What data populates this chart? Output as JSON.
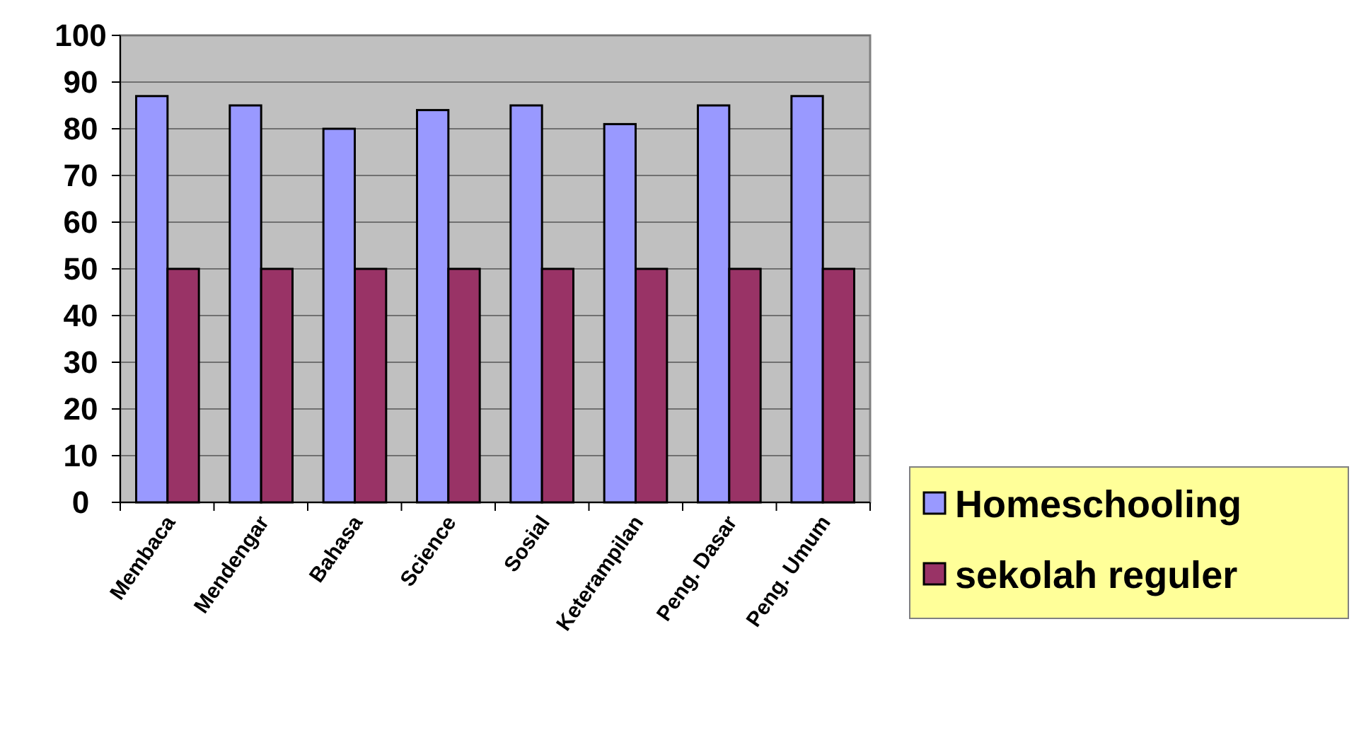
{
  "chart_data": {
    "type": "bar",
    "categories": [
      "Membaca",
      "Mendengar",
      "Bahasa",
      "Science",
      "Sosial",
      "Keterampilan",
      "Peng. Dasar",
      "Peng. Umum"
    ],
    "series": [
      {
        "name": "Homeschooling",
        "color": "#9999ff",
        "values": [
          87,
          85,
          80,
          84,
          85,
          81,
          85,
          87
        ]
      },
      {
        "name": "sekolah reguler",
        "color": "#993366",
        "values": [
          50,
          50,
          50,
          50,
          50,
          50,
          50,
          50
        ]
      }
    ],
    "ylim": [
      0,
      100
    ],
    "yticks": [
      0,
      10,
      20,
      30,
      40,
      50,
      60,
      70,
      80,
      90,
      100
    ],
    "grid": "y",
    "legend": "bottom right"
  }
}
